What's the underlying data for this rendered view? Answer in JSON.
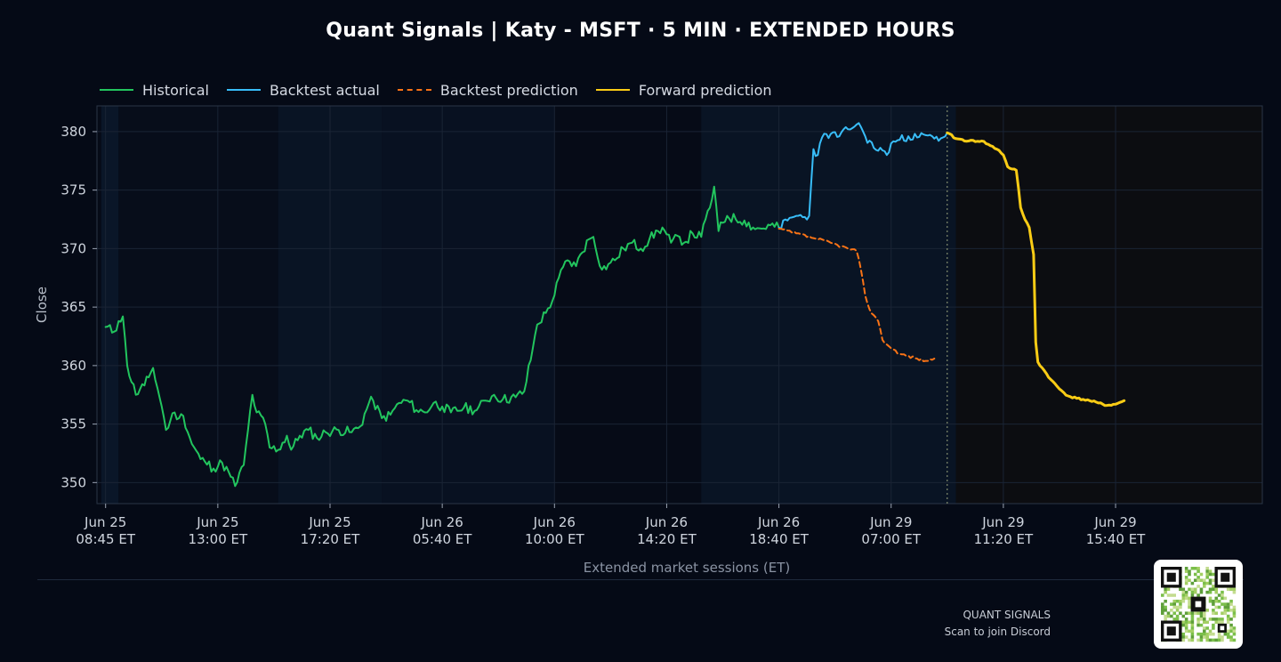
{
  "header": {
    "title": "Quant Signals | Katy - MSFT  ·  5 MIN  ·  EXTENDED HOURS"
  },
  "legend": {
    "items": [
      {
        "label": "Historical",
        "color": "#22c55e",
        "style": "solid"
      },
      {
        "label": "Backtest actual",
        "color": "#38bdf8",
        "style": "solid"
      },
      {
        "label": "Backtest prediction",
        "color": "#f97316",
        "style": "dashed"
      },
      {
        "label": "Forward prediction",
        "color": "#facc15",
        "style": "solid"
      }
    ]
  },
  "footer": {
    "brand": "QUANT SIGNALS",
    "cta": "Scan to join Discord"
  },
  "chart_data": {
    "type": "line",
    "xlabel": "Extended market sessions (ET)",
    "ylabel": "Close",
    "ylim": [
      348.2,
      382.2
    ],
    "yticks": [
      350,
      355,
      360,
      365,
      370,
      375,
      380
    ],
    "x_range": [
      -2,
      268
    ],
    "x_ticks": [
      {
        "i": 0,
        "line1": "Jun 25",
        "line2": "08:45 ET"
      },
      {
        "i": 26,
        "line1": "Jun 25",
        "line2": "13:00 ET"
      },
      {
        "i": 52,
        "line1": "Jun 25",
        "line2": "17:20 ET"
      },
      {
        "i": 78,
        "line1": "Jun 26",
        "line2": "05:40 ET"
      },
      {
        "i": 104,
        "line1": "Jun 26",
        "line2": "10:00 ET"
      },
      {
        "i": 130,
        "line1": "Jun 26",
        "line2": "14:20 ET"
      },
      {
        "i": 156,
        "line1": "Jun 26",
        "line2": "18:40 ET"
      },
      {
        "i": 182,
        "line1": "Jun 29",
        "line2": "07:00 ET"
      },
      {
        "i": 208,
        "line1": "Jun 29",
        "line2": "11:20 ET"
      },
      {
        "i": 234,
        "line1": "Jun 29",
        "line2": "15:40 ET"
      }
    ],
    "grid": true,
    "forecast_start": 195,
    "series": [
      {
        "name": "Historical",
        "color": "#22c55e",
        "style": "solid",
        "anchors": [
          [
            0,
            363.3
          ],
          [
            2,
            362.9
          ],
          [
            3,
            363.8
          ],
          [
            4,
            364.2
          ],
          [
            5,
            360.0
          ],
          [
            7,
            357.5
          ],
          [
            9,
            358.3
          ],
          [
            10,
            359.0
          ],
          [
            11,
            359.8
          ],
          [
            13,
            356.5
          ],
          [
            14,
            354.5
          ],
          [
            15,
            355.3
          ],
          [
            16,
            356.0
          ],
          [
            17,
            355.5
          ],
          [
            18,
            355.7
          ],
          [
            20,
            353.3
          ],
          [
            22,
            352.0
          ],
          [
            23,
            351.8
          ],
          [
            25,
            351.2
          ],
          [
            27,
            351.7
          ],
          [
            29,
            350.5
          ],
          [
            30,
            349.7
          ],
          [
            32,
            351.5
          ],
          [
            33,
            354.5
          ],
          [
            34,
            357.5
          ],
          [
            35,
            356.0
          ],
          [
            37,
            355.0
          ],
          [
            38,
            353.0
          ],
          [
            40,
            352.8
          ],
          [
            42,
            354.0
          ],
          [
            43,
            352.8
          ],
          [
            45,
            354.0
          ],
          [
            47,
            354.5
          ],
          [
            49,
            353.8
          ],
          [
            51,
            354.3
          ],
          [
            54,
            354.5
          ],
          [
            57,
            354.3
          ],
          [
            59,
            354.8
          ],
          [
            61,
            356.8
          ],
          [
            62,
            357.0
          ],
          [
            64,
            355.5
          ],
          [
            66,
            355.8
          ],
          [
            68,
            356.8
          ],
          [
            70,
            357.0
          ],
          [
            72,
            356.2
          ],
          [
            74,
            356.0
          ],
          [
            76,
            356.8
          ],
          [
            78,
            356.5
          ],
          [
            80,
            356.0
          ],
          [
            83,
            356.4
          ],
          [
            86,
            356.2
          ],
          [
            88,
            357.0
          ],
          [
            90,
            357.5
          ],
          [
            92,
            357.1
          ],
          [
            95,
            357.3
          ],
          [
            97,
            357.8
          ],
          [
            99,
            361.5
          ],
          [
            100,
            363.5
          ],
          [
            102,
            364.5
          ],
          [
            104,
            366.0
          ],
          [
            105,
            367.5
          ],
          [
            107,
            369.0
          ],
          [
            109,
            368.5
          ],
          [
            110,
            369.5
          ],
          [
            112,
            370.8
          ],
          [
            113,
            371.0
          ],
          [
            115,
            368.2
          ],
          [
            117,
            368.8
          ],
          [
            118,
            369.0
          ],
          [
            120,
            370.0
          ],
          [
            122,
            370.5
          ],
          [
            124,
            370.0
          ],
          [
            126,
            370.8
          ],
          [
            128,
            371.5
          ],
          [
            129,
            371.8
          ],
          [
            131,
            370.5
          ],
          [
            133,
            371.0
          ],
          [
            134,
            370.5
          ],
          [
            136,
            371.3
          ],
          [
            138,
            371.0
          ],
          [
            139,
            372.5
          ],
          [
            140,
            373.5
          ],
          [
            141,
            375.3
          ],
          [
            142,
            371.5
          ],
          [
            144,
            372.8
          ],
          [
            146,
            372.5
          ],
          [
            148,
            372.4
          ],
          [
            150,
            371.8
          ],
          [
            152,
            371.7
          ],
          [
            154,
            372.0
          ],
          [
            156,
            371.8
          ]
        ],
        "noise": 0.45,
        "seed": 11
      },
      {
        "name": "Backtest actual",
        "color": "#38bdf8",
        "style": "solid",
        "anchors": [
          [
            156,
            371.8
          ],
          [
            158,
            372.4
          ],
          [
            160,
            372.8
          ],
          [
            162,
            372.7
          ],
          [
            163,
            372.8
          ],
          [
            164,
            378.5
          ],
          [
            165,
            378.0
          ],
          [
            166,
            379.5
          ],
          [
            168,
            379.8
          ],
          [
            170,
            379.6
          ],
          [
            172,
            380.2
          ],
          [
            174,
            380.6
          ],
          [
            175,
            380.4
          ],
          [
            176,
            379.6
          ],
          [
            178,
            378.6
          ],
          [
            180,
            378.4
          ],
          [
            181,
            378.0
          ],
          [
            182,
            379.0
          ],
          [
            184,
            379.3
          ],
          [
            186,
            379.6
          ],
          [
            188,
            379.5
          ],
          [
            190,
            379.7
          ],
          [
            192,
            379.4
          ],
          [
            194,
            379.5
          ],
          [
            195,
            379.9
          ]
        ],
        "noise": 0.35,
        "seed": 23
      },
      {
        "name": "Backtest prediction",
        "color": "#f97316",
        "style": "dashed",
        "anchors": [
          [
            156,
            371.7
          ],
          [
            160,
            371.3
          ],
          [
            164,
            370.9
          ],
          [
            168,
            370.5
          ],
          [
            172,
            370.0
          ],
          [
            174,
            369.8
          ],
          [
            175,
            368.2
          ],
          [
            176,
            366.0
          ],
          [
            177,
            364.8
          ],
          [
            178,
            364.3
          ],
          [
            179,
            363.8
          ],
          [
            180,
            362.2
          ],
          [
            181,
            361.8
          ],
          [
            184,
            361.0
          ],
          [
            188,
            360.6
          ],
          [
            190,
            360.4
          ],
          [
            192,
            360.6
          ]
        ],
        "noise": 0.12,
        "seed": 37
      },
      {
        "name": "Forward prediction",
        "color": "#facc15",
        "style": "solid",
        "anchors": [
          [
            195,
            379.9
          ],
          [
            197,
            379.4
          ],
          [
            200,
            379.2
          ],
          [
            203,
            379.2
          ],
          [
            205,
            378.8
          ],
          [
            207,
            378.4
          ],
          [
            208,
            378.0
          ],
          [
            209,
            377.0
          ],
          [
            210,
            376.8
          ],
          [
            211,
            376.7
          ],
          [
            212,
            373.5
          ],
          [
            213,
            372.5
          ],
          [
            214,
            371.8
          ],
          [
            215,
            369.5
          ],
          [
            215.5,
            362.0
          ],
          [
            216,
            360.3
          ],
          [
            217,
            359.8
          ],
          [
            219,
            358.8
          ],
          [
            221,
            358.0
          ],
          [
            223,
            357.4
          ],
          [
            225,
            357.2
          ],
          [
            228,
            357.0
          ],
          [
            230,
            356.8
          ],
          [
            232,
            356.6
          ],
          [
            234,
            356.7
          ],
          [
            236,
            357.0
          ]
        ],
        "noise": 0.08,
        "seed": 41
      }
    ]
  }
}
